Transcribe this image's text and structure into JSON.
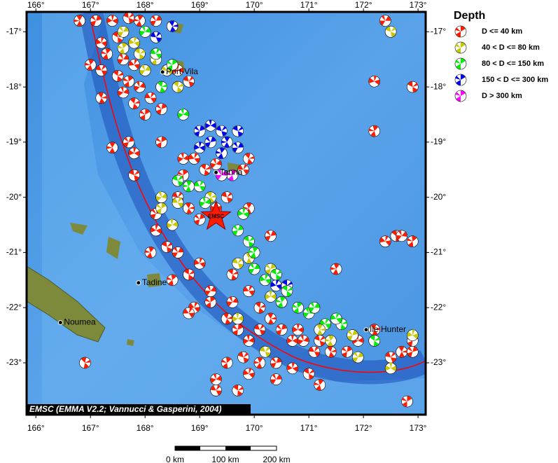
{
  "map": {
    "xlim": [
      165.83,
      173.14
    ],
    "ylim": [
      -23.94,
      -16.64
    ],
    "xticks": [
      {
        "value": 166,
        "label": "166°"
      },
      {
        "value": 167,
        "label": "167°"
      },
      {
        "value": 168,
        "label": "168°"
      },
      {
        "value": 169,
        "label": "169°"
      },
      {
        "value": 170,
        "label": "170°"
      },
      {
        "value": 171,
        "label": "171°"
      },
      {
        "value": 172,
        "label": "172°"
      },
      {
        "value": 173,
        "label": "173°"
      }
    ],
    "yticks": [
      {
        "value": -17,
        "label": "-17°"
      },
      {
        "value": -18,
        "label": "-18°"
      },
      {
        "value": -19,
        "label": "-19°"
      },
      {
        "value": -20,
        "label": "-20°"
      },
      {
        "value": -21,
        "label": "-21°"
      },
      {
        "value": -22,
        "label": "-22°"
      },
      {
        "value": -23,
        "label": "-23°"
      }
    ],
    "legend": {
      "title": "Depth",
      "classes": [
        {
          "label": "D <= 40 km",
          "color": "#ff1a00"
        },
        {
          "label": "40 < D <= 80 km",
          "color": "#c8c800"
        },
        {
          "label": "80 < D <= 150 km",
          "color": "#00ee00"
        },
        {
          "label": "150 < D <= 300 km",
          "color": "#0000ee"
        },
        {
          "label": "D > 300 km",
          "color": "#ff00ff"
        }
      ]
    },
    "places": [
      {
        "name": "Port-Vila",
        "lon": 168.32,
        "lat": -17.73
      },
      {
        "name": "Tanna",
        "lon": 169.3,
        "lat": -19.55
      },
      {
        "name": "Tadine",
        "lon": 167.88,
        "lat": -21.55
      },
      {
        "name": "Noumea",
        "lon": 166.45,
        "lat": -22.27
      },
      {
        "name": "Ile Hunter",
        "lon": 172.05,
        "lat": -22.4
      }
    ],
    "star": {
      "label": "EMSC",
      "lon": 169.3,
      "lat": -20.35
    },
    "credit": "EMSC (EMMA V2.2; Vannucci & Gasperini, 2004)",
    "scale": [
      "0 km",
      "100 km",
      "200 km"
    ],
    "events": [
      [
        166.8,
        -16.8,
        0
      ],
      [
        167.1,
        -16.8,
        0
      ],
      [
        167.4,
        -16.8,
        0
      ],
      [
        167.7,
        -16.75,
        0
      ],
      [
        167.9,
        -16.8,
        0
      ],
      [
        168.2,
        -16.8,
        0
      ],
      [
        167.2,
        -17.2,
        0
      ],
      [
        167.5,
        -17.1,
        0
      ],
      [
        167.3,
        -17.4,
        0
      ],
      [
        167.6,
        -17.5,
        0
      ],
      [
        167.8,
        -17.6,
        0
      ],
      [
        167.5,
        -17.8,
        0
      ],
      [
        167.7,
        -17.9,
        0
      ],
      [
        167.9,
        -18.0,
        0
      ],
      [
        168.1,
        -18.2,
        0
      ],
      [
        167.8,
        -18.3,
        0
      ],
      [
        168.0,
        -18.5,
        0
      ],
      [
        167.6,
        -18.1,
        0
      ],
      [
        167.2,
        -17.7,
        0
      ],
      [
        167.2,
        -18.2,
        0
      ],
      [
        168.3,
        -18.4,
        0
      ],
      [
        168.6,
        -17.7,
        0
      ],
      [
        168.8,
        -17.9,
        0
      ],
      [
        167.4,
        -19.1,
        0
      ],
      [
        167.7,
        -19.0,
        0
      ],
      [
        167.8,
        -19.2,
        0
      ],
      [
        167.8,
        -19.6,
        0
      ],
      [
        167.0,
        -17.6,
        0
      ],
      [
        167.6,
        -17.0,
        1
      ],
      [
        167.8,
        -17.2,
        1
      ],
      [
        167.9,
        -17.4,
        1
      ],
      [
        167.6,
        -17.3,
        1
      ],
      [
        168.0,
        -17.7,
        1
      ],
      [
        168.4,
        -17.7,
        1
      ],
      [
        168.6,
        -18.0,
        1
      ],
      [
        168.2,
        -17.5,
        1
      ],
      [
        168.0,
        -17.0,
        2
      ],
      [
        168.2,
        -17.4,
        2
      ],
      [
        168.3,
        -18.0,
        2
      ],
      [
        168.5,
        -17.6,
        2
      ],
      [
        168.7,
        -18.5,
        2
      ],
      [
        168.2,
        -17.1,
        3
      ],
      [
        168.5,
        -16.9,
        3
      ],
      [
        169.0,
        -18.8,
        3
      ],
      [
        169.2,
        -18.7,
        3
      ],
      [
        169.4,
        -18.8,
        3
      ],
      [
        169.5,
        -19.0,
        3
      ],
      [
        169.2,
        -19.0,
        3
      ],
      [
        169.0,
        -19.1,
        3
      ],
      [
        169.7,
        -18.8,
        3
      ],
      [
        169.4,
        -19.2,
        3
      ],
      [
        169.7,
        -19.1,
        3
      ],
      [
        170.4,
        -21.6,
        3
      ],
      [
        170.6,
        -21.6,
        3
      ],
      [
        169.6,
        -19.6,
        4
      ],
      [
        169.4,
        -19.6,
        4
      ],
      [
        168.9,
        -19.3,
        0
      ],
      [
        169.1,
        -19.5,
        0
      ],
      [
        168.7,
        -19.6,
        0
      ],
      [
        169.3,
        -19.4,
        0
      ],
      [
        169.8,
        -19.5,
        0
      ],
      [
        169.9,
        -19.3,
        0
      ],
      [
        168.3,
        -19.0,
        0
      ],
      [
        168.7,
        -19.3,
        0
      ],
      [
        168.6,
        -20.0,
        0
      ],
      [
        168.8,
        -20.2,
        0
      ],
      [
        169.0,
        -20.4,
        0
      ],
      [
        169.3,
        -20.2,
        0
      ],
      [
        169.5,
        -20.0,
        0
      ],
      [
        169.9,
        -20.2,
        0
      ],
      [
        168.2,
        -20.3,
        0
      ],
      [
        168.2,
        -20.6,
        0
      ],
      [
        168.4,
        -20.9,
        0
      ],
      [
        168.1,
        -21.0,
        0
      ],
      [
        168.6,
        -21.0,
        0
      ],
      [
        169.0,
        -21.2,
        0
      ],
      [
        168.8,
        -21.4,
        0
      ],
      [
        168.5,
        -21.5,
        0
      ],
      [
        169.2,
        -21.7,
        0
      ],
      [
        168.9,
        -22.0,
        0
      ],
      [
        169.6,
        -21.4,
        0
      ],
      [
        169.2,
        -21.9,
        0
      ],
      [
        168.3,
        -20.0,
        1
      ],
      [
        168.6,
        -20.1,
        1
      ],
      [
        169.2,
        -20.0,
        1
      ],
      [
        168.3,
        -20.2,
        1
      ],
      [
        168.5,
        -20.5,
        1
      ],
      [
        169.7,
        -21.2,
        1
      ],
      [
        169.9,
        -21.1,
        1
      ],
      [
        170.3,
        -21.3,
        1
      ],
      [
        170.3,
        -21.8,
        1
      ],
      [
        168.6,
        -19.7,
        2
      ],
      [
        168.8,
        -19.8,
        2
      ],
      [
        169.7,
        -20.6,
        2
      ],
      [
        169.8,
        -20.3,
        2
      ],
      [
        169.9,
        -20.8,
        2
      ],
      [
        170.0,
        -21.0,
        2
      ],
      [
        170.0,
        -21.3,
        2
      ],
      [
        170.2,
        -21.5,
        2
      ],
      [
        170.6,
        -21.7,
        2
      ],
      [
        170.8,
        -22.0,
        2
      ],
      [
        171.0,
        -22.1,
        2
      ],
      [
        171.3,
        -22.3,
        2
      ],
      [
        171.6,
        -22.3,
        2
      ],
      [
        172.2,
        -22.6,
        2
      ],
      [
        169.1,
        -20.1,
        2
      ],
      [
        169.0,
        -19.8,
        2
      ],
      [
        169.5,
        -22.2,
        0
      ],
      [
        169.7,
        -22.4,
        0
      ],
      [
        169.9,
        -22.6,
        0
      ],
      [
        170.1,
        -22.4,
        0
      ],
      [
        170.3,
        -22.2,
        0
      ],
      [
        170.5,
        -22.4,
        0
      ],
      [
        170.7,
        -22.6,
        0
      ],
      [
        169.8,
        -22.9,
        0
      ],
      [
        170.1,
        -23.0,
        0
      ],
      [
        170.4,
        -23.0,
        0
      ],
      [
        170.7,
        -23.1,
        0
      ],
      [
        171.0,
        -23.2,
        0
      ],
      [
        171.2,
        -23.4,
        0
      ],
      [
        170.4,
        -23.3,
        0
      ],
      [
        169.9,
        -23.2,
        0
      ],
      [
        169.7,
        -23.5,
        0
      ],
      [
        169.5,
        -23.0,
        0
      ],
      [
        169.6,
        -21.9,
        0
      ],
      [
        169.9,
        -21.7,
        0
      ],
      [
        170.1,
        -22.0,
        0
      ],
      [
        170.5,
        -21.9,
        0
      ],
      [
        170.9,
        -22.6,
        0
      ],
      [
        171.1,
        -22.8,
        0
      ],
      [
        171.4,
        -22.8,
        0
      ],
      [
        171.7,
        -22.8,
        0
      ],
      [
        171.9,
        -22.6,
        0
      ],
      [
        172.5,
        -22.9,
        0
      ],
      [
        172.7,
        -22.8,
        0
      ],
      [
        172.9,
        -22.8,
        0
      ],
      [
        170.8,
        -22.4,
        0
      ],
      [
        171.2,
        -22.6,
        0
      ],
      [
        171.5,
        -21.3,
        0
      ],
      [
        170.3,
        -20.7,
        0
      ],
      [
        172.2,
        -17.9,
        0
      ],
      [
        172.9,
        -18.0,
        0
      ],
      [
        172.2,
        -18.8,
        0
      ],
      [
        172.4,
        -16.8,
        0
      ],
      [
        172.4,
        -20.8,
        0
      ],
      [
        172.6,
        -20.7,
        0
      ],
      [
        172.9,
        -20.8,
        0
      ],
      [
        172.7,
        -20.7,
        0
      ],
      [
        168.8,
        -22.1,
        0
      ],
      [
        166.9,
        -23.0,
        0
      ],
      [
        172.8,
        -23.7,
        0
      ],
      [
        169.3,
        -23.3,
        0
      ],
      [
        169.3,
        -23.5,
        0
      ],
      [
        172.2,
        -22.4,
        0
      ],
      [
        172.9,
        -22.6,
        0
      ],
      [
        169.7,
        -22.2,
        1
      ],
      [
        170.2,
        -22.8,
        1
      ],
      [
        171.2,
        -22.4,
        1
      ],
      [
        171.8,
        -22.5,
        1
      ],
      [
        172.5,
        -23.1,
        1
      ],
      [
        172.5,
        -17.0,
        1
      ],
      [
        171.4,
        -22.6,
        1
      ],
      [
        171.9,
        -22.9,
        1
      ],
      [
        172.9,
        -22.5,
        1
      ],
      [
        170.4,
        -21.4,
        2
      ],
      [
        170.5,
        -21.9,
        2
      ],
      [
        171.1,
        -22.0,
        2
      ],
      [
        171.5,
        -22.2,
        2
      ],
      [
        172.2,
        -22.6,
        2
      ]
    ]
  }
}
